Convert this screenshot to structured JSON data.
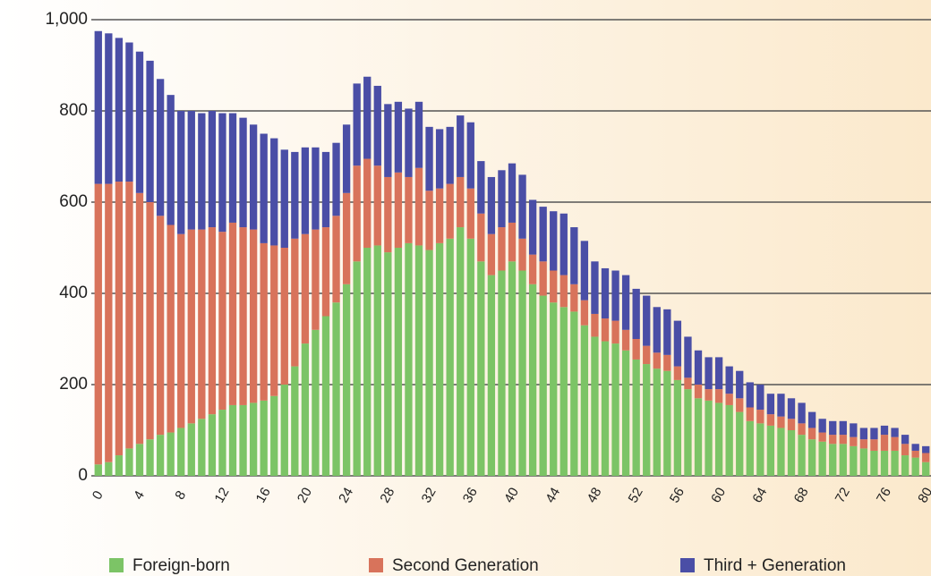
{
  "chart_data": {
    "type": "stacked_bar",
    "categories": [
      "0",
      null,
      null,
      null,
      "4",
      null,
      null,
      null,
      "8",
      null,
      null,
      null,
      "12",
      null,
      null,
      null,
      "16",
      null,
      null,
      null,
      "20",
      null,
      null,
      null,
      "24",
      null,
      null,
      null,
      "28",
      null,
      null,
      null,
      "32",
      null,
      null,
      null,
      "36",
      null,
      null,
      null,
      "40",
      null,
      null,
      null,
      "44",
      null,
      null,
      null,
      "48",
      null,
      null,
      null,
      "52",
      null,
      null,
      null,
      "56",
      null,
      null,
      null,
      "60",
      null,
      null,
      null,
      "64",
      null,
      null,
      null,
      "68",
      null,
      null,
      null,
      "72",
      null,
      null,
      null,
      "76",
      null,
      null,
      null,
      "80"
    ],
    "series": [
      {
        "name": "Foreign-born",
        "color": "#7cc466",
        "values": [
          25,
          30,
          45,
          60,
          70,
          80,
          90,
          95,
          105,
          115,
          125,
          135,
          145,
          155,
          155,
          160,
          165,
          175,
          200,
          240,
          290,
          320,
          350,
          380,
          420,
          470,
          500,
          505,
          490,
          500,
          510,
          505,
          495,
          510,
          520,
          545,
          520,
          470,
          440,
          450,
          470,
          450,
          420,
          395,
          380,
          370,
          360,
          330,
          305,
          295,
          290,
          275,
          255,
          245,
          235,
          230,
          210,
          190,
          170,
          165,
          160,
          155,
          140,
          120,
          115,
          110,
          105,
          100,
          90,
          80,
          75,
          70,
          70,
          65,
          60,
          55,
          55,
          55,
          45,
          40,
          30
        ]
      },
      {
        "name": "Second Generation",
        "color": "#d8735b",
        "values": [
          615,
          610,
          600,
          585,
          550,
          520,
          480,
          455,
          425,
          425,
          415,
          410,
          390,
          400,
          390,
          380,
          345,
          330,
          300,
          280,
          240,
          220,
          195,
          190,
          200,
          210,
          195,
          175,
          165,
          165,
          145,
          170,
          130,
          120,
          120,
          110,
          110,
          105,
          90,
          95,
          85,
          70,
          65,
          75,
          70,
          70,
          60,
          55,
          50,
          50,
          50,
          45,
          45,
          40,
          35,
          35,
          30,
          25,
          30,
          25,
          30,
          25,
          30,
          30,
          30,
          25,
          25,
          25,
          25,
          25,
          20,
          20,
          20,
          20,
          20,
          25,
          35,
          30,
          25,
          15,
          20
        ]
      },
      {
        "name": "Third + Generation",
        "color": "#4a4ea6",
        "values": [
          335,
          330,
          315,
          305,
          310,
          310,
          300,
          285,
          270,
          260,
          255,
          255,
          260,
          240,
          240,
          230,
          240,
          235,
          215,
          190,
          190,
          180,
          165,
          160,
          150,
          180,
          180,
          175,
          160,
          155,
          150,
          145,
          140,
          130,
          125,
          135,
          145,
          115,
          125,
          125,
          130,
          140,
          120,
          120,
          130,
          135,
          125,
          130,
          115,
          110,
          110,
          120,
          110,
          110,
          100,
          100,
          100,
          90,
          75,
          70,
          70,
          60,
          60,
          55,
          55,
          45,
          50,
          45,
          45,
          35,
          30,
          30,
          30,
          30,
          25,
          25,
          20,
          20,
          20,
          15,
          15
        ]
      }
    ],
    "ylim": [
      0,
      1000
    ],
    "yticks": [
      0,
      200,
      400,
      600,
      800,
      {
        "value": 1000,
        "label": "1,000"
      }
    ],
    "grid": true
  }
}
